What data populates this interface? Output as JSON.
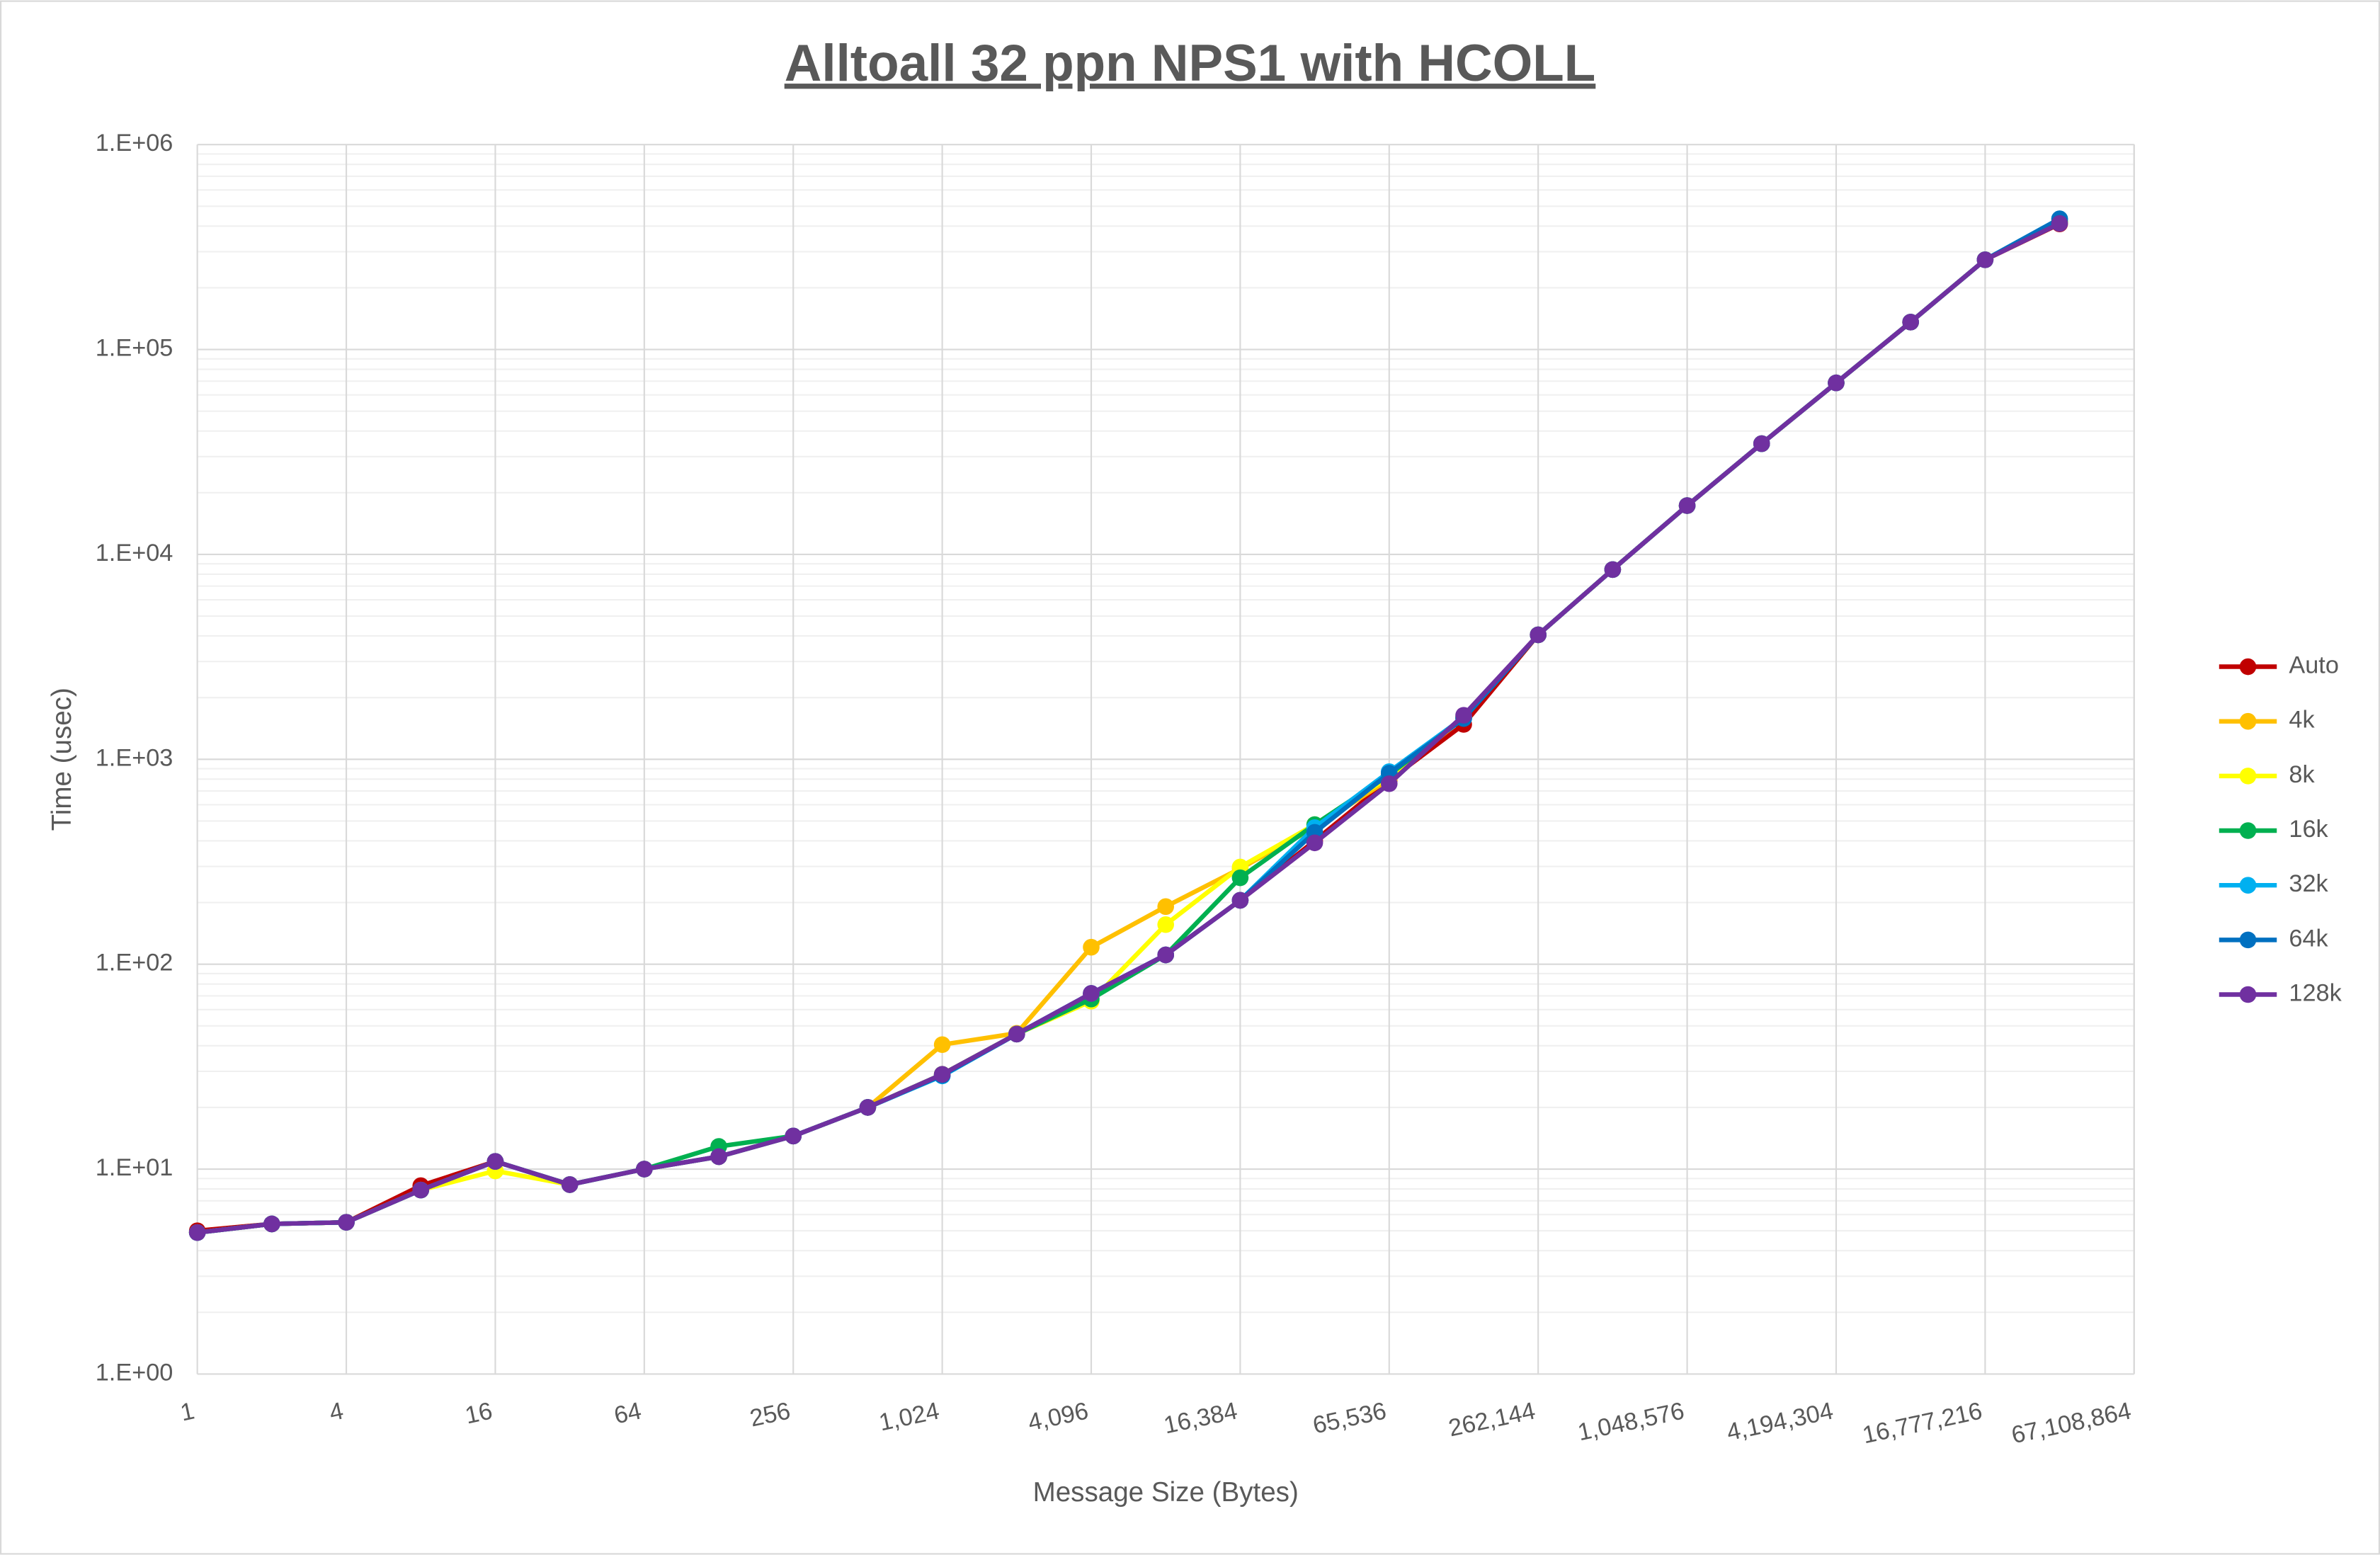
{
  "chart_data": {
    "type": "line",
    "title": "Alltoall 32 ppn NPS1 with HCOLL",
    "x_label": "Message Size (Bytes)",
    "y_label": "Time (usec)",
    "x": [
      1,
      2,
      4,
      8,
      16,
      32,
      64,
      128,
      256,
      512,
      1024,
      2048,
      4096,
      8192,
      16384,
      32768,
      65536,
      131072,
      262144,
      524288,
      1048576,
      2097152,
      4194304,
      8388608,
      16777216,
      33554432
    ],
    "series": [
      {
        "name": "Auto",
        "color": "#c00000",
        "values": [
          5,
          5.4,
          5.5,
          8.3,
          10.9,
          8.4,
          10,
          11.5,
          14.5,
          20,
          29,
          45.6,
          71,
          111,
          205,
          400,
          790,
          1480,
          4050,
          8430,
          17300,
          34700,
          68700,
          136000,
          274000,
          410000
        ]
      },
      {
        "name": "4k",
        "color": "#ffc000",
        "values": [
          4.9,
          5.4,
          5.5,
          7.9,
          10.9,
          8.4,
          10,
          11.5,
          14.5,
          20,
          40.5,
          46,
          121,
          191,
          293,
          464,
          800,
          1600,
          4050,
          8430,
          17300,
          34700,
          68700,
          136000,
          274000,
          420000
        ]
      },
      {
        "name": "8k",
        "color": "#ffff00",
        "values": [
          4.9,
          5.4,
          5.5,
          7.9,
          9.8,
          8.4,
          10,
          11.5,
          14.5,
          20,
          29,
          45.6,
          66,
          156,
          298,
          480,
          820,
          1600,
          4050,
          8430,
          17300,
          34700,
          68700,
          136000,
          274000,
          420000
        ]
      },
      {
        "name": "16k",
        "color": "#00b050",
        "values": [
          4.9,
          5.4,
          5.5,
          7.9,
          10.9,
          8.4,
          10,
          12.9,
          14.5,
          20,
          29,
          45.6,
          67.6,
          111,
          264,
          480,
          840,
          1600,
          4050,
          8430,
          17300,
          34700,
          68700,
          136000,
          274000,
          420000
        ]
      },
      {
        "name": "32k",
        "color": "#00b0f0",
        "values": [
          4.9,
          5.4,
          5.5,
          7.9,
          10.9,
          8.4,
          10,
          11.5,
          14.5,
          20,
          28.5,
          45.6,
          72,
          111,
          205,
          464,
          870,
          1600,
          4050,
          8430,
          17300,
          34700,
          68700,
          136000,
          274000,
          434000
        ]
      },
      {
        "name": "64k",
        "color": "#0070c0",
        "values": [
          4.9,
          5.4,
          5.5,
          7.9,
          10.9,
          8.4,
          10,
          11.5,
          14.5,
          20,
          28.7,
          45.6,
          72,
          111,
          205,
          440,
          855,
          1580,
          4050,
          8430,
          17300,
          34700,
          68700,
          136000,
          274000,
          434000
        ]
      },
      {
        "name": "128k",
        "color": "#7030a0",
        "values": [
          4.9,
          5.4,
          5.5,
          7.9,
          10.9,
          8.4,
          10,
          11.5,
          14.5,
          20,
          29,
          45.6,
          72,
          111,
          205,
          391,
          760,
          1640,
          4050,
          8430,
          17300,
          34700,
          68700,
          136000,
          274000,
          412000
        ]
      }
    ],
    "xscale": "log",
    "yscale": "log",
    "xlim": [
      1,
      67108864
    ],
    "xticks": [
      1,
      4,
      16,
      64,
      256,
      {
        "value": 1024,
        "label": "1,024"
      },
      {
        "value": 4096,
        "label": "4,096"
      },
      {
        "value": 16384,
        "label": "16,384"
      },
      {
        "value": 65536,
        "label": "65,536"
      },
      {
        "value": 262144,
        "label": "262,144"
      },
      {
        "value": 1048576,
        "label": "1,048,576"
      },
      {
        "value": 4194304,
        "label": "4,194,304"
      },
      {
        "value": 16777216,
        "label": "16,777,216"
      },
      {
        "value": 67108864,
        "label": "67,108,864"
      }
    ],
    "ylim": [
      1,
      1000000
    ],
    "yticks": [
      {
        "value": 1,
        "label": "1.E+00"
      },
      {
        "value": 10,
        "label": "1.E+01"
      },
      {
        "value": 100,
        "label": "1.E+02"
      },
      {
        "value": 1000,
        "label": "1.E+03"
      },
      {
        "value": 10000,
        "label": "1.E+04"
      },
      {
        "value": 100000,
        "label": "1.E+05"
      },
      {
        "value": 1000000,
        "label": "1.E+06"
      }
    ],
    "grid": true,
    "minor_grid": true,
    "legend": "right"
  }
}
